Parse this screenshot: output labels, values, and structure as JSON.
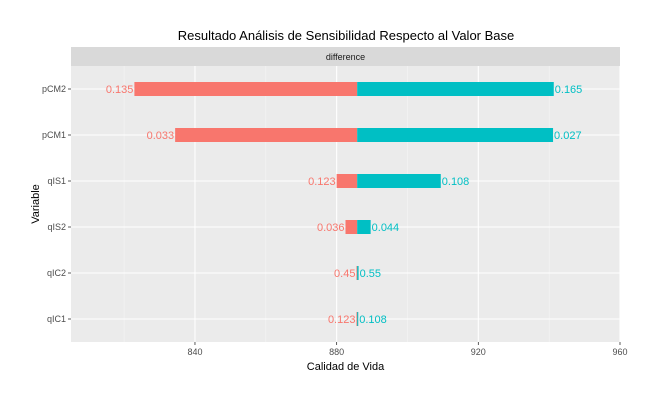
{
  "chart_data": {
    "type": "bar",
    "title": "Resultado Análisis de Sensibilidad Respecto al Valor Base",
    "facet_label": "difference",
    "xlabel": "Calidad de Vida",
    "ylabel": "Variable",
    "xlim": [
      805,
      960
    ],
    "x_ticks": [
      "840",
      "880",
      "920",
      "960"
    ],
    "x_tick_values": [
      840,
      880,
      920,
      960
    ],
    "base_value": 885.8,
    "grid": true,
    "categories": [
      "pCM2",
      "pCM1",
      "qIS1",
      "qIS2",
      "qIC2",
      "qIC1"
    ],
    "series": [
      {
        "color": "#F8766D",
        "start": [
          822.9,
          834.4,
          880.0,
          882.5,
          885.6,
          885.6
        ],
        "end": [
          885.8,
          885.8,
          885.8,
          885.8,
          885.8,
          885.8
        ],
        "labels": [
          "0.135",
          "0.033",
          "0.123",
          "0.036",
          "0.45",
          "0.123"
        ]
      },
      {
        "color": "#00BFC4",
        "start": [
          885.8,
          885.8,
          885.8,
          885.8,
          885.8,
          885.8
        ],
        "end": [
          941.3,
          941.1,
          909.4,
          889.6,
          886.2,
          886.1
        ],
        "labels": [
          "0.165",
          "0.027",
          "0.108",
          "0.044",
          "0.55",
          "0.108"
        ]
      }
    ]
  }
}
